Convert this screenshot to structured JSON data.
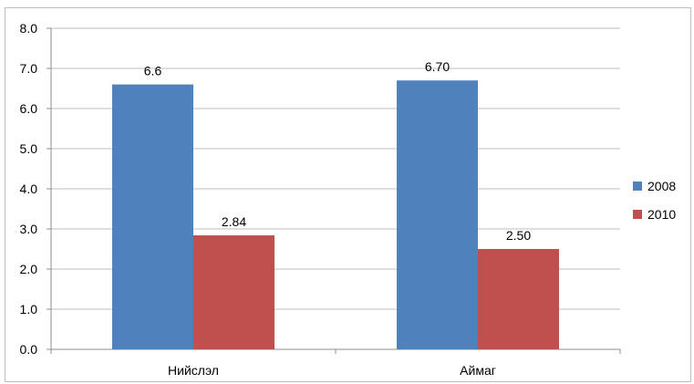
{
  "chart_data": {
    "type": "bar",
    "title": "",
    "xlabel": "",
    "ylabel": "",
    "categories": [
      "Нийслэл",
      "Аймаг"
    ],
    "series": [
      {
        "name": "2008",
        "values": [
          6.6,
          6.7
        ],
        "labels": [
          "6.6",
          "6.70"
        ],
        "color": "#4f81bd"
      },
      {
        "name": "2010",
        "values": [
          2.84,
          2.5
        ],
        "labels": [
          "2.84",
          "2.50"
        ],
        "color": "#c0504d"
      }
    ],
    "ylim": [
      0,
      8
    ],
    "yticks": [
      "0.0",
      "1.0",
      "2.0",
      "3.0",
      "4.0",
      "5.0",
      "6.0",
      "7.0",
      "8.0"
    ],
    "grid": true,
    "legend_position": "right"
  }
}
